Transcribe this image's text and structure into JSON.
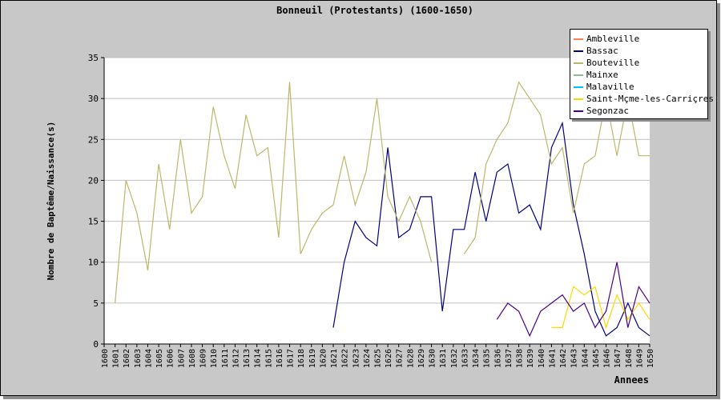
{
  "chart_data": {
    "type": "line",
    "title": "Bonneuil (Protestants) (1600-1650)",
    "xlabel": "Annees",
    "ylabel": "Nombre de Baptême/Naissance(s)",
    "ylim": [
      0,
      35
    ],
    "yticks": [
      0,
      5,
      10,
      15,
      20,
      25,
      30,
      35
    ],
    "categories": [
      "1600",
      "1601",
      "1602",
      "1603",
      "1604",
      "1605",
      "1606",
      "1607",
      "1608",
      "1609",
      "1610",
      "1611",
      "1612",
      "1613",
      "1614",
      "1615",
      "1616",
      "1617",
      "1618",
      "1619",
      "1620",
      "1621",
      "1622",
      "1623",
      "1624",
      "1625",
      "1626",
      "1627",
      "1628",
      "1629",
      "1630",
      "1631",
      "1632",
      "1633",
      "1634",
      "1635",
      "1636",
      "1637",
      "1638",
      "1639",
      "1640",
      "1641",
      "1642",
      "1643",
      "1644",
      "1645",
      "1646",
      "1647",
      "1648",
      "1649",
      "1650"
    ],
    "grid": true,
    "legend_position": "top-right",
    "series": [
      {
        "name": "Ambleville",
        "color": "#ff7f50",
        "values": [
          null,
          null,
          null,
          null,
          null,
          null,
          null,
          null,
          null,
          null,
          null,
          null,
          null,
          null,
          null,
          null,
          null,
          null,
          null,
          null,
          null,
          null,
          null,
          null,
          null,
          null,
          null,
          null,
          null,
          null,
          null,
          null,
          null,
          null,
          null,
          null,
          null,
          null,
          null,
          null,
          null,
          null,
          null,
          null,
          null,
          null,
          null,
          null,
          null,
          null,
          null
        ]
      },
      {
        "name": "Bassac",
        "color": "#000080",
        "values": [
          null,
          null,
          null,
          null,
          null,
          null,
          null,
          null,
          null,
          null,
          null,
          null,
          null,
          null,
          null,
          null,
          null,
          null,
          null,
          null,
          null,
          2,
          10,
          15,
          13,
          12,
          24,
          13,
          14,
          18,
          18,
          4,
          14,
          14,
          21,
          15,
          21,
          22,
          16,
          17,
          14,
          24,
          27,
          17,
          11,
          4,
          1,
          2,
          5,
          2,
          1
        ]
      },
      {
        "name": "Bouteville",
        "color": "#bdb76b",
        "values": [
          null,
          5,
          20,
          16,
          9,
          22,
          14,
          25,
          16,
          18,
          29,
          23,
          19,
          28,
          23,
          24,
          13,
          32,
          11,
          14,
          16,
          17,
          23,
          17,
          21,
          30,
          18,
          15,
          18,
          15,
          10,
          null,
          null,
          11,
          13,
          22,
          25,
          27,
          32,
          30,
          28,
          22,
          24,
          16,
          22,
          23,
          30,
          23,
          30,
          23,
          23
        ]
      },
      {
        "name": "Mainxe",
        "color": "#8fbc8f",
        "values": [
          null,
          null,
          null,
          null,
          null,
          null,
          null,
          null,
          null,
          null,
          null,
          null,
          null,
          null,
          null,
          null,
          null,
          null,
          null,
          null,
          null,
          null,
          null,
          null,
          null,
          null,
          null,
          null,
          null,
          null,
          null,
          null,
          null,
          null,
          null,
          null,
          null,
          null,
          null,
          null,
          null,
          null,
          null,
          null,
          null,
          null,
          null,
          null,
          null,
          null,
          null
        ]
      },
      {
        "name": "Malaville",
        "color": "#00bfff",
        "values": [
          null,
          null,
          null,
          null,
          null,
          null,
          null,
          null,
          null,
          null,
          null,
          null,
          null,
          null,
          null,
          null,
          null,
          null,
          null,
          null,
          null,
          null,
          null,
          null,
          null,
          null,
          null,
          null,
          null,
          null,
          null,
          null,
          null,
          null,
          null,
          null,
          null,
          null,
          null,
          null,
          null,
          null,
          null,
          null,
          null,
          null,
          null,
          null,
          null,
          null,
          null
        ]
      },
      {
        "name": "Saint-Même-les-Carrières",
        "legend_label": "Saint-Mçme-les-Carriçres",
        "color": "#ffd700",
        "values": [
          null,
          null,
          null,
          null,
          null,
          null,
          null,
          null,
          null,
          null,
          null,
          null,
          null,
          null,
          null,
          null,
          null,
          null,
          null,
          null,
          null,
          null,
          null,
          null,
          null,
          null,
          null,
          null,
          null,
          null,
          null,
          null,
          null,
          null,
          null,
          null,
          null,
          null,
          null,
          null,
          null,
          2,
          2,
          7,
          6,
          7,
          2,
          6,
          3,
          5,
          3
        ]
      },
      {
        "name": "Segonzac",
        "color": "#4b0082",
        "values": [
          null,
          null,
          null,
          null,
          null,
          null,
          null,
          null,
          null,
          null,
          null,
          null,
          null,
          null,
          null,
          null,
          null,
          null,
          null,
          null,
          null,
          null,
          null,
          null,
          null,
          null,
          null,
          null,
          null,
          null,
          null,
          null,
          null,
          null,
          null,
          null,
          3,
          5,
          4,
          1,
          4,
          5,
          6,
          4,
          5,
          2,
          4,
          10,
          2,
          7,
          5
        ]
      }
    ]
  }
}
